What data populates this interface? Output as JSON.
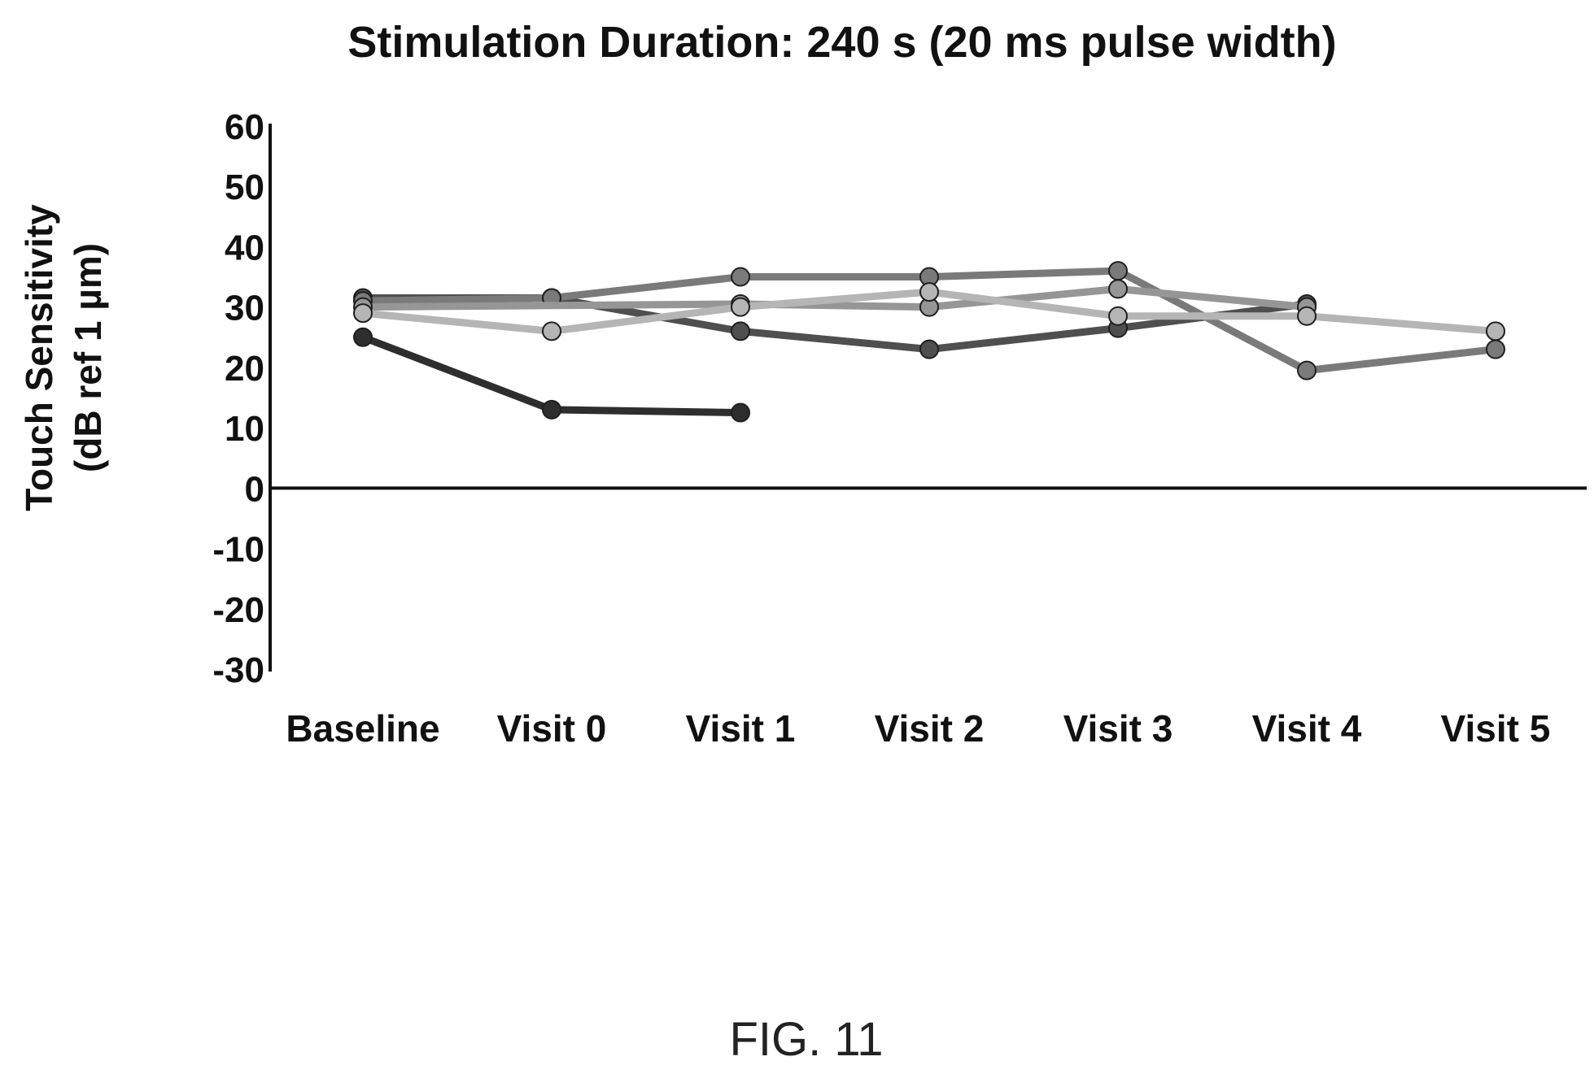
{
  "figure_label": "FIG. 11",
  "chart_data": {
    "type": "line",
    "title": "Stimulation Duration: 240 s (20 ms pulse width)",
    "xlabel": "",
    "ylabel_lines": [
      "Touch Sensitivity",
      "(dB ref 1 µm)"
    ],
    "ylim": [
      -30,
      60
    ],
    "yticks": [
      60,
      50,
      40,
      30,
      20,
      10,
      0,
      -10,
      -20,
      -30
    ],
    "categories": [
      "Baseline",
      "Visit 0",
      "Visit 1",
      "Visit 2",
      "Visit 3",
      "Visit 4",
      "Visit 5"
    ],
    "grid": false,
    "legend": "none",
    "series": [
      {
        "color": "#2e2e2e",
        "values": [
          25,
          13,
          12.5,
          null,
          null,
          null,
          null
        ]
      },
      {
        "color": "#4f4f4f",
        "values": [
          31.5,
          31.5,
          26,
          23,
          26.5,
          30.5,
          null
        ]
      },
      {
        "color": "#7a7a7a",
        "values": [
          31,
          31.5,
          35,
          35,
          36,
          19.5,
          23
        ]
      },
      {
        "color": "#969696",
        "values": [
          30,
          null,
          30.5,
          30,
          33,
          30,
          null
        ]
      },
      {
        "color": "#b5b5b5",
        "values": [
          29,
          26,
          30,
          32.5,
          28.5,
          28.5,
          26
        ]
      }
    ]
  }
}
